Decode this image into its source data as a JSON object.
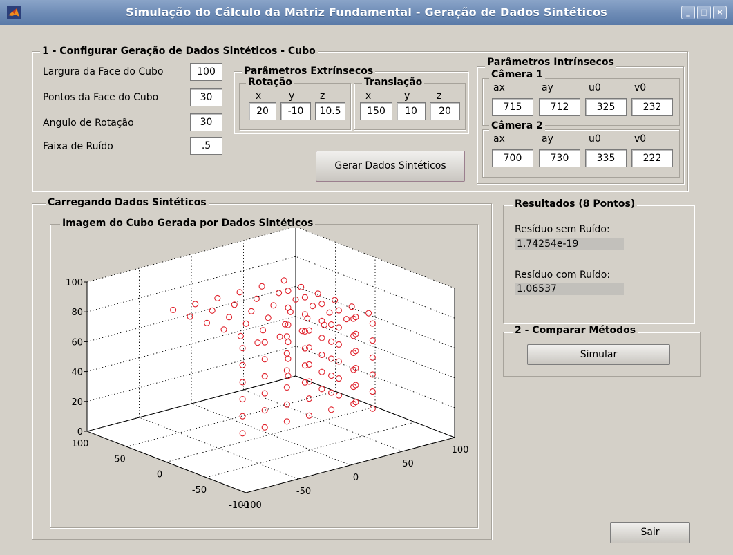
{
  "window": {
    "title": "Simulação do Cálculo da Matriz Fundamental - Geração de Dados Sintéticos",
    "controls": {
      "minimize": "_",
      "maximize": "□",
      "close": "×"
    }
  },
  "config": {
    "legend": "1 - Configurar Geração de Dados Sintéticos - Cubo",
    "width_label": "Largura da Face do Cubo",
    "width_value": "100",
    "points_label": "Pontos da Face do Cubo",
    "points_value": "30",
    "angle_label": "Angulo de Rotação",
    "angle_value": "30",
    "noise_label": "Faixa de Ruído",
    "noise_value": ".5",
    "extrinsic": {
      "legend": "Parâmetros Extrínsecos",
      "rotation": {
        "legend": "Rotação",
        "x_label": "x",
        "y_label": "y",
        "z_label": "z",
        "x": "20",
        "y": "-10",
        "z": "10.5"
      },
      "translation": {
        "legend": "Translação",
        "x_label": "x",
        "y_label": "y",
        "z_label": "z",
        "x": "150",
        "y": "10",
        "z": "20"
      }
    },
    "intrinsic": {
      "legend": "Parâmetros Intrínsecos",
      "cam1": {
        "legend": "Câmera 1",
        "ax_label": "ax",
        "ay_label": "ay",
        "u0_label": "u0",
        "v0_label": "v0",
        "ax": "715",
        "ay": "712",
        "u0": "325",
        "v0": "232"
      },
      "cam2": {
        "legend": "Câmera 2",
        "ax_label": "ax",
        "ay_label": "ay",
        "u0_label": "u0",
        "v0_label": "v0",
        "ax": "700",
        "ay": "730",
        "u0": "335",
        "v0": "222"
      }
    },
    "generate_button": "Gerar Dados Sintéticos"
  },
  "loading": {
    "legend": "Carregando Dados Sintéticos",
    "plot_legend": "Imagem do Cubo Gerada por Dados Sintéticos"
  },
  "chart_data": {
    "type": "scatter",
    "title": "",
    "marker": "circle",
    "marker_color": "#e0202a",
    "grid": true,
    "zlim": [
      0,
      100
    ],
    "xlim": [
      -100,
      100
    ],
    "ylim": [
      -100,
      100
    ],
    "z_ticks": [
      "0",
      "20",
      "40",
      "60",
      "80",
      "100"
    ],
    "x_ticks": [
      "-100",
      "-50",
      "0",
      "50",
      "100"
    ],
    "y_ticks": [
      "100",
      "50",
      "0",
      "-50",
      "-100"
    ],
    "points_description_count": 120
  },
  "results": {
    "legend": "Resultados (8 Pontos)",
    "no_noise_label": "Resíduo sem Ruído:",
    "no_noise_value": "1.74254e-19",
    "noise_label": "Resíduo com Ruído:",
    "noise_value": "1.06537"
  },
  "compare": {
    "legend": "2 - Comparar Métodos",
    "simulate_button": "Simular"
  },
  "exit_button": "Sair"
}
